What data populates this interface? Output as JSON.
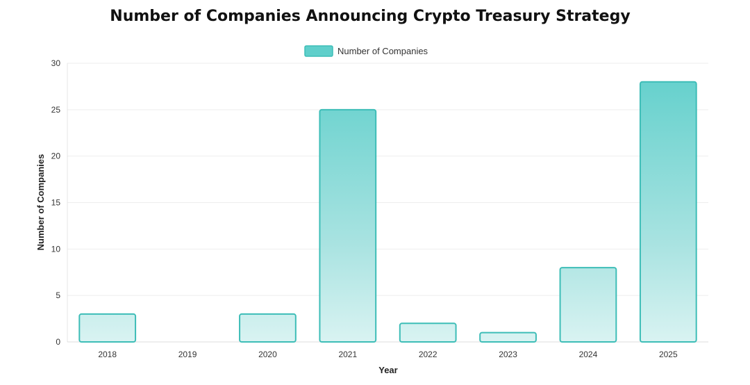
{
  "chart_data": {
    "type": "bar",
    "title": "Number of Companies Announcing Crypto Treasury Strategy",
    "xlabel": "Year",
    "ylabel": "Number of Companies",
    "categories": [
      "2018",
      "2019",
      "2020",
      "2021",
      "2022",
      "2023",
      "2024",
      "2025"
    ],
    "series": [
      {
        "name": "Number of Companies",
        "values": [
          3,
          0,
          3,
          25,
          2,
          1,
          8,
          28
        ]
      }
    ],
    "ylim": [
      0,
      30
    ],
    "yticks": [
      "0",
      "5",
      "10",
      "15",
      "20",
      "25",
      "30"
    ],
    "grid": true,
    "legend_position": "top-center",
    "colors": {
      "bar_border": "#3dbdb7",
      "bar_fill_top": "#5fcfcb",
      "bar_fill_bottom": "#d9f3f2",
      "legend_swatch": "#5fcfcb",
      "grid": "#eeeeee"
    }
  }
}
